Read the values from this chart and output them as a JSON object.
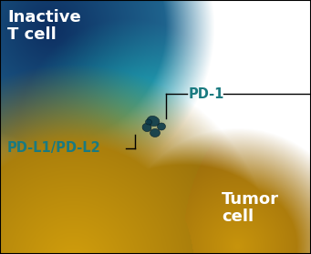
{
  "inactive_tcell_label": "Inactive\nT cell",
  "tumor_cell_label": "Tumor\ncell",
  "pd1_label": "PD-1",
  "pdl1_label": "PD-L1/PD-L2",
  "label_color_white": "#FFFFFF",
  "label_color_teal": "#1a7a80",
  "border_color": "#000000",
  "background_color": "#FFFFFF",
  "fig_width": 3.41,
  "fig_height": 2.79,
  "dpi": 100
}
